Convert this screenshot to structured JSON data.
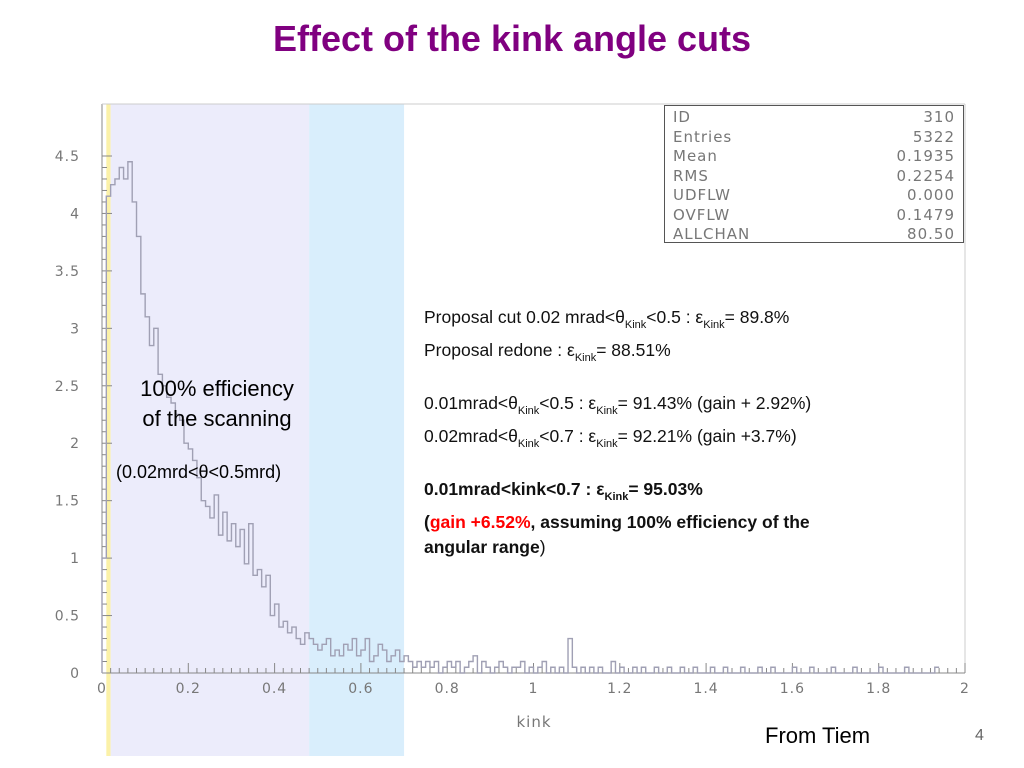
{
  "slide": {
    "title": "Effect of the kink angle cuts",
    "credit": "From Tiem",
    "page_number": "4"
  },
  "stats_box": [
    {
      "key": "ID",
      "value": "310"
    },
    {
      "key": "Entries",
      "value": "5322"
    },
    {
      "key": "Mean",
      "value": "0.1935"
    },
    {
      "key": "RMS",
      "value": "0.2254"
    },
    {
      "key": "UDFLW",
      "value": "0.000"
    },
    {
      "key": "OVFLW",
      "value": "0.1479"
    },
    {
      "key": "ALLCHAN",
      "value": "80.50"
    }
  ],
  "band_note": {
    "line1": "100% efficiency",
    "line2": "of the scanning",
    "range": "(0.02mrd<θ<0.5mrd)"
  },
  "results": {
    "l1": {
      "a": "Proposal cut 0.02 mrad<θ",
      "sub1": "Kink",
      "b": "<0.5 : ε",
      "sub2": "Kink",
      "c": "= 89.8%"
    },
    "l2": {
      "a": "Proposal redone : ε",
      "sub1": "Kink",
      "b": "= 88.51%"
    },
    "l3": {
      "a": "0.01mrad<θ",
      "sub1": "Kink",
      "b": "<0.5  : ε",
      "sub2": "Kink",
      "c": "= 91.43% (gain + 2.92%)"
    },
    "l4": {
      "a": "0.02mrad<θ",
      "sub1": "Kink",
      "b": "<0.7   : ε",
      "sub2": "Kink",
      "c": "= 92.21% (gain +3.7%)"
    },
    "l5": {
      "a": "0.01mrad<kink<0.7   : ε",
      "sub1": "Kink",
      "b": "= 95.03%"
    },
    "l6": {
      "open": "(",
      "red": "gain +6.52%",
      "rest": ", assuming 100% efficiency of the"
    },
    "l7": {
      "a": "angular range",
      "close": ")"
    }
  },
  "colors": {
    "title": "#800080",
    "histogram_line": "#a0a0b4",
    "band_lavender": "#ececfb",
    "band_blue": "#d9eefc",
    "band_yellow": "#fbf1a8",
    "axis": "#888888",
    "highlight_red": "#ff0000"
  },
  "chart_data": {
    "type": "histogram",
    "xlabel": "kink",
    "ylabel": "",
    "xlim": [
      0,
      2
    ],
    "ylim": [
      0,
      5
    ],
    "grid": false,
    "x_ticks": [
      "0",
      "0.2",
      "0.4",
      "0.6",
      "0.8",
      "1",
      "1.2",
      "1.4",
      "1.6",
      "1.8",
      "2"
    ],
    "y_ticks": [
      "0",
      "0.5",
      "1",
      "1.5",
      "2",
      "2.5",
      "3",
      "3.5",
      "4",
      "4.5"
    ],
    "bin_width": 0.01,
    "bin_start": 0,
    "shaded_regions": [
      {
        "name": "yellow",
        "x_range": [
          0.01,
          0.02
        ]
      },
      {
        "name": "lavender",
        "x_range": [
          0.02,
          0.48
        ]
      },
      {
        "name": "blue",
        "x_range": [
          0.48,
          0.7
        ]
      }
    ],
    "values": [
      1.0,
      4.15,
      4.25,
      4.3,
      4.4,
      4.3,
      4.45,
      4.1,
      3.8,
      3.3,
      3.1,
      2.85,
      3.0,
      2.6,
      2.5,
      2.4,
      2.35,
      2.25,
      2.2,
      2.0,
      1.95,
      1.85,
      1.7,
      1.5,
      1.45,
      1.35,
      1.55,
      1.2,
      1.4,
      1.15,
      1.3,
      1.1,
      1.25,
      0.95,
      1.3,
      0.85,
      0.9,
      0.75,
      0.85,
      0.5,
      0.6,
      0.4,
      0.45,
      0.35,
      0.4,
      0.3,
      0.25,
      0.35,
      0.3,
      0.25,
      0.2,
      0.25,
      0.3,
      0.15,
      0.2,
      0.15,
      0.25,
      0.2,
      0.3,
      0.15,
      0.2,
      0.3,
      0.1,
      0.15,
      0.25,
      0.2,
      0.1,
      0.15,
      0.2,
      0.1,
      0.15,
      0.1,
      0.05,
      0.1,
      0.05,
      0.1,
      0.05,
      0.1,
      0.0,
      0.05,
      0.1,
      0.05,
      0.1,
      0.0,
      0.05,
      0.1,
      0.15,
      0.0,
      0.1,
      0.05,
      0.0,
      0.05,
      0.1,
      0.05,
      0.0,
      0.05,
      0.05,
      0.1,
      0.0,
      0.05,
      0.0,
      0.05,
      0.1,
      0.0,
      0.05,
      0.0,
      0.05,
      0.0,
      0.3,
      0.05,
      0.0,
      0.05,
      0.0,
      0.05,
      0.0,
      0.05,
      0.0,
      0.0,
      0.1,
      0.0,
      0.05,
      0.0,
      0.0,
      0.05,
      0.0,
      0.05,
      0.0,
      0.0,
      0.05,
      0.0,
      0.0,
      0.05,
      0.0,
      0.0,
      0.05,
      0.0,
      0.0,
      0.05,
      0.0,
      0.0,
      0.0,
      0.05,
      0.0,
      0.0,
      0.05,
      0.0,
      0.0,
      0.0,
      0.05,
      0.0,
      0.0,
      0.0,
      0.05,
      0.0,
      0.0,
      0.05,
      0.0,
      0.0,
      0.0,
      0.0,
      0.05,
      0.0,
      0.0,
      0.0,
      0.05,
      0.0,
      0.0,
      0.0,
      0.0,
      0.05,
      0.0,
      0.0,
      0.0,
      0.0,
      0.05,
      0.0,
      0.0,
      0.0,
      0.0,
      0.0,
      0.05,
      0.0,
      0.0,
      0.0,
      0.0,
      0.0,
      0.05,
      0.0,
      0.0,
      0.0,
      0.0,
      0.0,
      0.0,
      0.05
    ]
  }
}
